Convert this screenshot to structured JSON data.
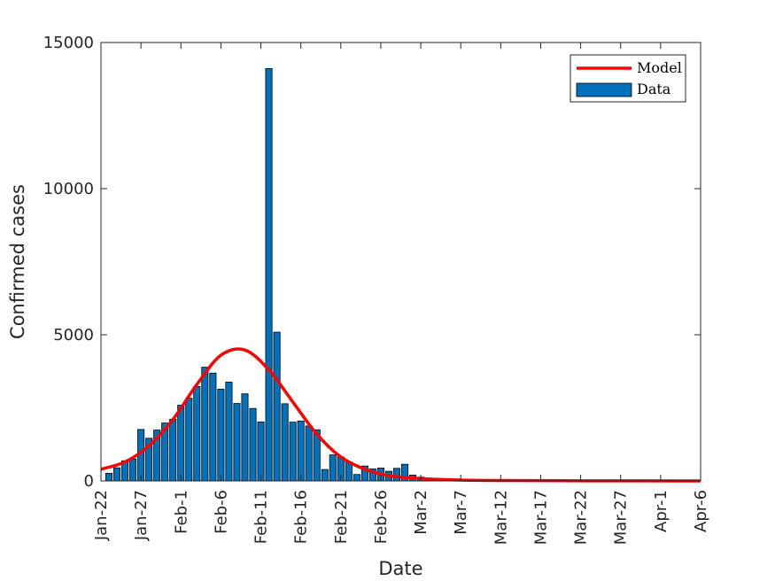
{
  "chart_data": {
    "type": "bar",
    "title": "",
    "xlabel": "Date",
    "ylabel": "Confirmed cases",
    "x_ticks": [
      "Jan-22",
      "Jan-27",
      "Feb-1",
      "Feb-6",
      "Feb-11",
      "Feb-16",
      "Feb-21",
      "Feb-26",
      "Mar-2",
      "Mar-7",
      "Mar-12",
      "Mar-17",
      "Mar-22",
      "Mar-27",
      "Apr-1",
      "Apr-6"
    ],
    "y_ticks": [
      "0",
      "5000",
      "10000",
      "15000"
    ],
    "ylim": [
      0,
      15000
    ],
    "xlim": [
      "Jan-22",
      "Apr-6"
    ],
    "grid": false,
    "legend_position": "top-right",
    "legend": [
      {
        "label": "Model",
        "kind": "line",
        "color": "#ff0000"
      },
      {
        "label": "Data",
        "kind": "bar",
        "color": "#0072bd"
      }
    ],
    "bar_series": {
      "name": "Data",
      "color": "#0072bd",
      "dates": [
        "Jan-23",
        "Jan-24",
        "Jan-25",
        "Jan-26",
        "Jan-27",
        "Jan-28",
        "Jan-29",
        "Jan-30",
        "Jan-31",
        "Feb-1",
        "Feb-2",
        "Feb-3",
        "Feb-4",
        "Feb-5",
        "Feb-6",
        "Feb-7",
        "Feb-8",
        "Feb-9",
        "Feb-10",
        "Feb-11",
        "Feb-12",
        "Feb-13",
        "Feb-14",
        "Feb-15",
        "Feb-16",
        "Feb-17",
        "Feb-18",
        "Feb-19",
        "Feb-20",
        "Feb-21",
        "Feb-22",
        "Feb-23",
        "Feb-24",
        "Feb-25",
        "Feb-26",
        "Feb-27",
        "Feb-28",
        "Feb-29",
        "Mar-1",
        "Mar-2"
      ],
      "values": [
        260,
        450,
        690,
        750,
        1760,
        1460,
        1740,
        1980,
        2110,
        2590,
        2830,
        3230,
        3890,
        3690,
        3140,
        3380,
        2650,
        2980,
        2480,
        2020,
        14110,
        5090,
        2640,
        2010,
        2050,
        1880,
        1750,
        390,
        890,
        820,
        650,
        220,
        510,
        410,
        440,
        330,
        430,
        570,
        200,
        130
      ]
    },
    "line_series": {
      "name": "Model",
      "color": "#ff0000",
      "dates": [
        "Jan-22",
        "Jan-25",
        "Jan-28",
        "Jan-31",
        "Feb-3",
        "Feb-6",
        "Feb-9",
        "Feb-12",
        "Feb-15",
        "Feb-18",
        "Feb-21",
        "Feb-24",
        "Feb-27",
        "Mar-2",
        "Mar-7",
        "Mar-12",
        "Mar-22",
        "Apr-6"
      ],
      "values": [
        400,
        650,
        1200,
        2100,
        3300,
        4300,
        4480,
        3800,
        2700,
        1600,
        820,
        400,
        180,
        80,
        30,
        15,
        5,
        0
      ]
    }
  }
}
